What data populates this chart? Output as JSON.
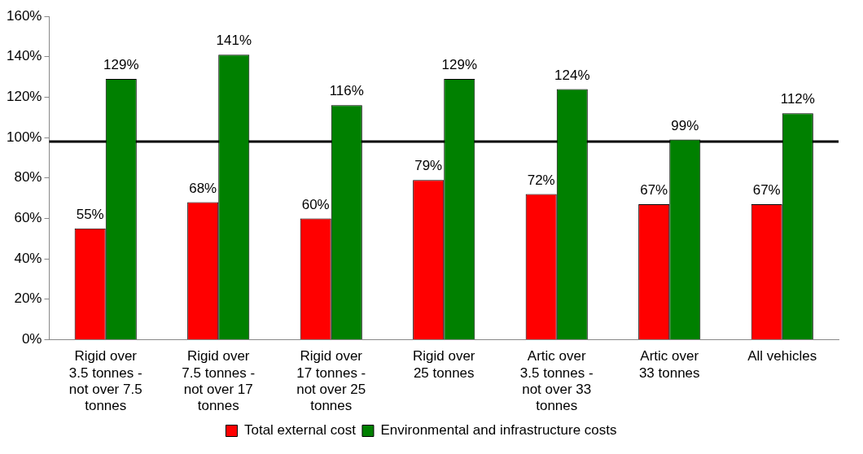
{
  "chart_data": {
    "type": "bar",
    "categories": [
      "Rigid over 3.5 tonnes - not over 7.5 tonnes",
      "Rigid over 7.5 tonnes - not over 17 tonnes",
      "Rigid over 17 tonnes - not over 25 tonnes",
      "Rigid over 25 tonnes",
      "Artic over 3.5 tonnes - not over 33 tonnes",
      "Artic over 33 tonnes",
      "All vehicles"
    ],
    "series": [
      {
        "name": "Total external cost",
        "color": "#ff0000",
        "values": [
          55,
          68,
          60,
          79,
          72,
          67,
          67
        ],
        "value_labels": [
          "55%",
          "68%",
          "60%",
          "79%",
          "72%",
          "67%",
          "67%"
        ]
      },
      {
        "name": "Environmental and infrastructure costs",
        "color": "#008000",
        "values": [
          129,
          141,
          116,
          129,
          124,
          99,
          112
        ],
        "value_labels": [
          "129%",
          "141%",
          "116%",
          "129%",
          "124%",
          "99%",
          "112%"
        ]
      }
    ],
    "ylim": [
      0,
      160
    ],
    "yticks": [
      {
        "value": 0,
        "label": "0%"
      },
      {
        "value": 20,
        "label": "20%"
      },
      {
        "value": 40,
        "label": "40%"
      },
      {
        "value": 60,
        "label": "60%"
      },
      {
        "value": 80,
        "label": "80%"
      },
      {
        "value": 100,
        "label": "100%"
      },
      {
        "value": 120,
        "label": "120%"
      },
      {
        "value": 140,
        "label": "140%"
      },
      {
        "value": 160,
        "label": "160%"
      }
    ],
    "ref_lines": [
      {
        "axis": "y",
        "value": 98,
        "color": "#000000"
      }
    ],
    "grid": false,
    "legend": "bottom"
  }
}
